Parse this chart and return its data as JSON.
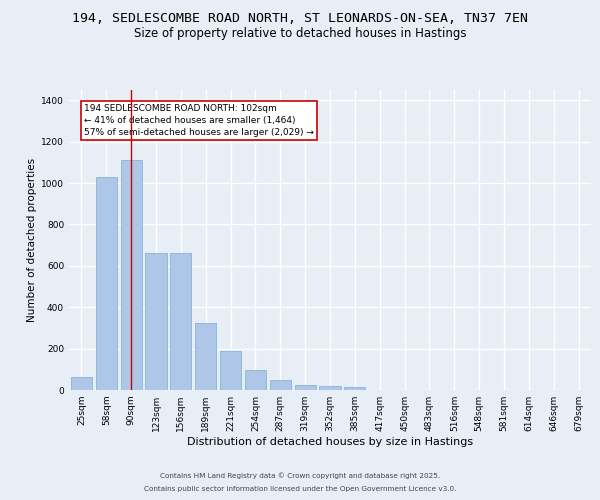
{
  "title_line1": "194, SEDLESCOMBE ROAD NORTH, ST LEONARDS-ON-SEA, TN37 7EN",
  "title_line2": "Size of property relative to detached houses in Hastings",
  "xlabel": "Distribution of detached houses by size in Hastings",
  "ylabel": "Number of detached properties",
  "categories": [
    "25sqm",
    "58sqm",
    "90sqm",
    "123sqm",
    "156sqm",
    "189sqm",
    "221sqm",
    "254sqm",
    "287sqm",
    "319sqm",
    "352sqm",
    "385sqm",
    "417sqm",
    "450sqm",
    "483sqm",
    "516sqm",
    "548sqm",
    "581sqm",
    "614sqm",
    "646sqm",
    "679sqm"
  ],
  "values": [
    65,
    1030,
    1110,
    660,
    660,
    325,
    190,
    95,
    50,
    25,
    20,
    15,
    0,
    0,
    0,
    0,
    0,
    0,
    0,
    0,
    0
  ],
  "bar_color": "#aec6e8",
  "bar_edge_color": "#7aadd4",
  "vline_x": 2,
  "vline_color": "#cc0000",
  "annotation_text": "194 SEDLESCOMBE ROAD NORTH: 102sqm\n← 41% of detached houses are smaller (1,464)\n57% of semi-detached houses are larger (2,029) →",
  "annotation_box_color": "#ffffff",
  "annotation_box_edge_color": "#cc0000",
  "ylim": [
    0,
    1450
  ],
  "yticks": [
    0,
    200,
    400,
    600,
    800,
    1000,
    1200,
    1400
  ],
  "bg_color": "#e8eef5",
  "plot_bg_color": "#e8eef5",
  "footer_line1": "Contains HM Land Registry data © Crown copyright and database right 2025.",
  "footer_line2": "Contains public sector information licensed under the Open Government Licence v3.0.",
  "grid_color": "#ffffff",
  "title_fontsize": 9.5,
  "subtitle_fontsize": 8.5,
  "axis_label_fontsize": 7.5,
  "tick_fontsize": 6.5,
  "annotation_fontsize": 6.5,
  "footer_fontsize": 5.2
}
